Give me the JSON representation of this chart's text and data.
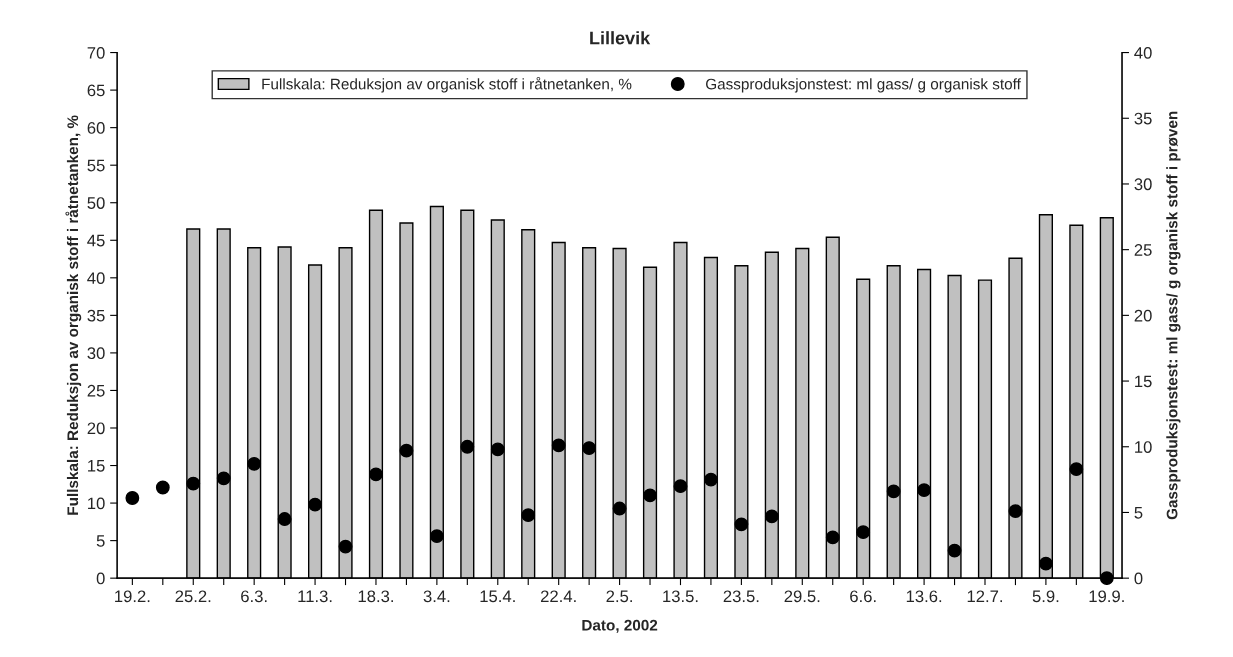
{
  "chart_data": {
    "type": "bar",
    "title": "Lillevik",
    "xlabel": "Dato, 2002",
    "ylabel": "Fullskala: Reduksjon av organisk stoff i råtnetanken, %",
    "y2label": "Gassproduksjonstest: ml gass/ g organisk stoff i prøven",
    "categories": [
      "19.2.",
      null,
      "25.2.",
      null,
      "6.3.",
      null,
      "11.3.",
      null,
      "18.3.",
      null,
      "3.4.",
      null,
      "15.4.",
      null,
      "22.4.",
      null,
      "2.5.",
      null,
      "13.5.",
      null,
      "23.5.",
      null,
      "29.5.",
      null,
      "6.6.",
      null,
      "13.6.",
      null,
      "12.7.",
      null,
      "5.9.",
      null,
      "19.9."
    ],
    "series": [
      {
        "name": "Fullskala: Reduksjon av organisk stoff i råtnetanken, %",
        "color": "#c0c0c0",
        "values": [
          null,
          null,
          46.5,
          46.5,
          44.0,
          44.1,
          41.7,
          44.0,
          49.0,
          47.3,
          49.5,
          49.0,
          47.7,
          46.4,
          44.7,
          44.0,
          43.9,
          41.4,
          44.7,
          42.7,
          41.6,
          43.4,
          43.9,
          45.4,
          39.8,
          41.6,
          41.1,
          40.3,
          39.7,
          42.6,
          48.4,
          47.0,
          48.0
        ]
      },
      {
        "name": "Gassproduksjonstest: ml gass/ g organisk stoff",
        "type": "scatter",
        "axis": "y2",
        "color": "#000000",
        "marker": "circle",
        "values": [
          6.1,
          6.9,
          7.2,
          7.6,
          8.7,
          4.5,
          5.6,
          2.4,
          7.9,
          9.7,
          3.2,
          10.0,
          9.8,
          4.8,
          10.1,
          9.9,
          5.3,
          6.3,
          7.0,
          7.5,
          4.1,
          4.7,
          null,
          3.1,
          3.5,
          6.6,
          6.7,
          2.1,
          null,
          5.1,
          1.1,
          8.3,
          0.0
        ]
      }
    ],
    "ylim": [
      0,
      70
    ],
    "yticks": [
      0,
      5,
      10,
      15,
      20,
      25,
      30,
      35,
      40,
      45,
      50,
      55,
      60,
      65,
      70
    ],
    "y2lim": [
      0,
      40
    ],
    "y2ticks": [
      0,
      5,
      10,
      15,
      20,
      25,
      30,
      35,
      40
    ],
    "grid": false,
    "legend": "top"
  }
}
